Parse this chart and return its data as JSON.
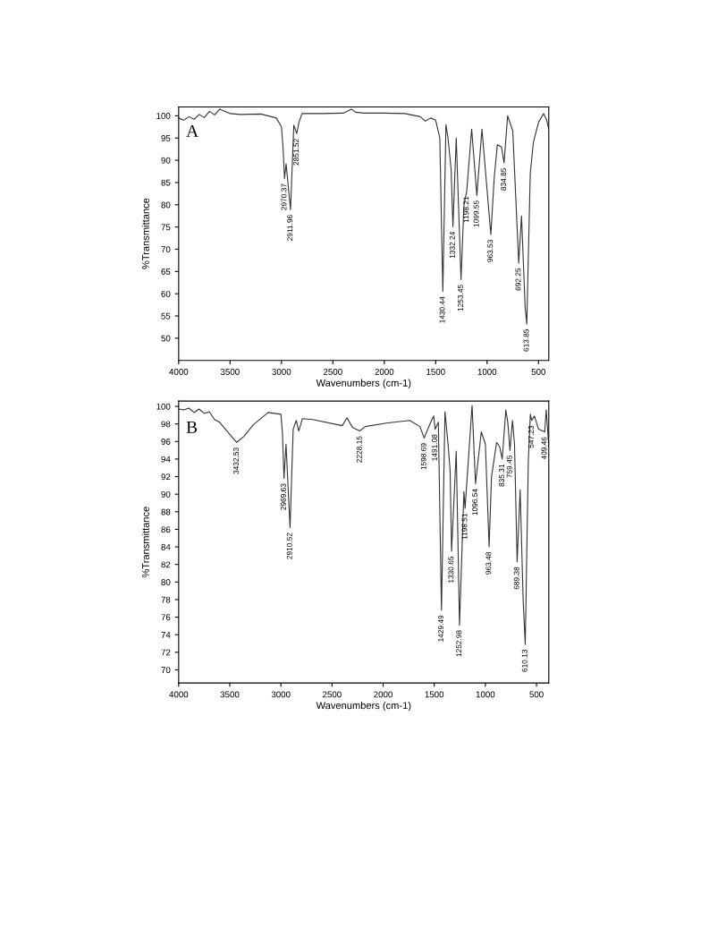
{
  "chart_data": [
    {
      "type": "line",
      "xlabel": "Wavenumbers (cm-1)",
      "ylabel": "%Transmittance",
      "xlim": [
        4000,
        400
      ],
      "ylim": [
        45,
        102
      ],
      "xticks": [
        4000,
        3500,
        3000,
        2500,
        2000,
        1500,
        1000,
        500
      ],
      "yticks": [
        50,
        55,
        60,
        65,
        70,
        75,
        80,
        85,
        90,
        95,
        100
      ],
      "grid": false,
      "legend": false,
      "series": [
        {
          "color": "#333333",
          "x": [
            4000,
            3950,
            3900,
            3850,
            3800,
            3750,
            3700,
            3650,
            3600,
            3500,
            3400,
            3200,
            3050,
            3000,
            2985,
            2970.37,
            2955,
            2911.96,
            2880,
            2851.52,
            2830,
            2800,
            2600,
            2400,
            2320,
            2280,
            2200,
            2000,
            1800,
            1650,
            1600,
            1550,
            1500,
            1460,
            1430.44,
            1400,
            1380,
            1350,
            1332.24,
            1300,
            1253.45,
            1225,
            1198.21,
            1150,
            1099.55,
            1050,
            963.53,
            930,
            900,
            860,
            834.85,
            800,
            750,
            692.25,
            665,
            630,
            613.85,
            580,
            550,
            500,
            450,
            420,
            400
          ],
          "values": [
            99.5,
            99,
            99.8,
            99.2,
            100.3,
            99.6,
            101,
            100.2,
            101.5,
            100.5,
            100.3,
            100.4,
            99.5,
            97.5,
            93,
            85.9,
            89.2,
            78.9,
            97.9,
            96,
            98.5,
            100.5,
            100.5,
            100.6,
            101.5,
            100.8,
            100.6,
            100.6,
            100.5,
            99.8,
            98.8,
            99.5,
            99,
            95,
            60.5,
            98,
            95,
            88,
            75.1,
            95,
            63.2,
            80,
            83,
            97,
            82.1,
            97,
            73.3,
            86.3,
            93.5,
            93,
            89.4,
            100,
            96.6,
            66.9,
            77.5,
            57,
            53.2,
            87,
            94,
            98.5,
            100.5,
            99,
            97
          ]
        }
      ],
      "annotations": [
        "A",
        {
          "text": "2970.37",
          "x": 2970.37,
          "y": 85.9
        },
        {
          "text": "2911.96",
          "x": 2911.96,
          "y": 78.9
        },
        {
          "text": "2851.52",
          "x": 2851.52,
          "y": 96
        },
        {
          "text": "1430.44",
          "x": 1430.44,
          "y": 60.5
        },
        {
          "text": "1332.24",
          "x": 1332.24,
          "y": 75.1
        },
        {
          "text": "1253.45",
          "x": 1253.45,
          "y": 63.2
        },
        {
          "text": "1198.21",
          "x": 1198.21,
          "y": 83
        },
        {
          "text": "1099.55",
          "x": 1099.55,
          "y": 82.1
        },
        {
          "text": "963.53",
          "x": 963.53,
          "y": 73.3
        },
        {
          "text": "834.85",
          "x": 834.85,
          "y": 89.4
        },
        {
          "text": "692.25",
          "x": 692.25,
          "y": 66.9
        },
        {
          "text": "613.85",
          "x": 613.85,
          "y": 53.2
        }
      ]
    },
    {
      "type": "line",
      "xlabel": "Wavenumbers (cm-1)",
      "ylabel": "%Transmittance",
      "xlim": [
        4000,
        380
      ],
      "ylim": [
        68.5,
        100.6
      ],
      "xticks": [
        4000,
        3500,
        3000,
        2500,
        2000,
        1500,
        1000,
        500
      ],
      "yticks": [
        70,
        72,
        74,
        76,
        78,
        80,
        82,
        84,
        86,
        88,
        90,
        92,
        94,
        96,
        98,
        100
      ],
      "grid": false,
      "legend": false,
      "series": [
        {
          "color": "#333333",
          "x": [
            4000,
            3950,
            3900,
            3850,
            3800,
            3750,
            3700,
            3650,
            3600,
            3550,
            3500,
            3432.53,
            3360,
            3270,
            3125,
            3000,
            2985,
            2969.63,
            2950,
            2910.52,
            2880,
            2850,
            2825,
            2790,
            2690,
            2400,
            2353,
            2300,
            2265,
            2228.15,
            2175,
            1970,
            1740,
            1640,
            1598.69,
            1535,
            1505,
            1491.08,
            1460,
            1429.49,
            1395,
            1365,
            1345,
            1330.65,
            1285,
            1252.98,
            1210,
            1198.51,
            1130,
            1096.54,
            1040,
            1000,
            963.48,
            940,
            890,
            860,
            835.31,
            800,
            780,
            759.45,
            735,
            715,
            689.38,
            660,
            630,
            610.13,
            580,
            560,
            547.23,
            520,
            480,
            420,
            405,
            380
          ],
          "values": [
            99.7,
            99.6,
            99.8,
            99.3,
            99.7,
            99.2,
            99.4,
            98.5,
            98.2,
            97.5,
            96.8,
            95.9,
            96.6,
            97.9,
            99.3,
            99.1,
            97,
            91.8,
            95.7,
            86.2,
            97.4,
            98.4,
            97.2,
            98.6,
            98.5,
            97.8,
            98.7,
            97.6,
            97.4,
            97.2,
            97.7,
            98.1,
            98.4,
            97.7,
            96.4,
            98.2,
            98.9,
            97.4,
            98.2,
            76.8,
            99.4,
            95.7,
            92.7,
            83.5,
            94.9,
            75.1,
            90.3,
            88.4,
            100.1,
            91.2,
            97.1,
            95.7,
            84,
            92,
            95.9,
            95.4,
            94,
            99.6,
            98.1,
            95,
            98.4,
            95.7,
            82.3,
            90.5,
            77.8,
            72.9,
            93.7,
            99.1,
            98.4,
            98.9,
            97.4,
            97.1,
            99.6,
            95.4
          ]
        }
      ],
      "annotations": [
        "B",
        {
          "text": "3432.53",
          "x": 3432.53,
          "y": 95.9
        },
        {
          "text": "2969.63",
          "x": 2969.63,
          "y": 91.8
        },
        {
          "text": "2910.52",
          "x": 2910.52,
          "y": 86.2
        },
        {
          "text": "2228.15",
          "x": 2228.15,
          "y": 97.2
        },
        {
          "text": "1598.69",
          "x": 1598.69,
          "y": 96.4
        },
        {
          "text": "1491.08",
          "x": 1491.08,
          "y": 97.4
        },
        {
          "text": "1429.49",
          "x": 1429.49,
          "y": 76.8
        },
        {
          "text": "1330.65",
          "x": 1330.65,
          "y": 83.5
        },
        {
          "text": "1252.98",
          "x": 1252.98,
          "y": 75.1
        },
        {
          "text": "1198.51",
          "x": 1198.51,
          "y": 88.4
        },
        {
          "text": "1096.54",
          "x": 1096.54,
          "y": 91.2
        },
        {
          "text": "963.48",
          "x": 963.48,
          "y": 84
        },
        {
          "text": "835.31",
          "x": 835.31,
          "y": 94
        },
        {
          "text": "759.45",
          "x": 759.45,
          "y": 95
        },
        {
          "text": "689.38",
          "x": 689.38,
          "y": 82.3
        },
        {
          "text": "610.13",
          "x": 610.13,
          "y": 72.9
        },
        {
          "text": "547.23",
          "x": 547.23,
          "y": 98.4
        },
        {
          "text": "409.46",
          "x": 420,
          "y": 97.1
        }
      ]
    }
  ]
}
